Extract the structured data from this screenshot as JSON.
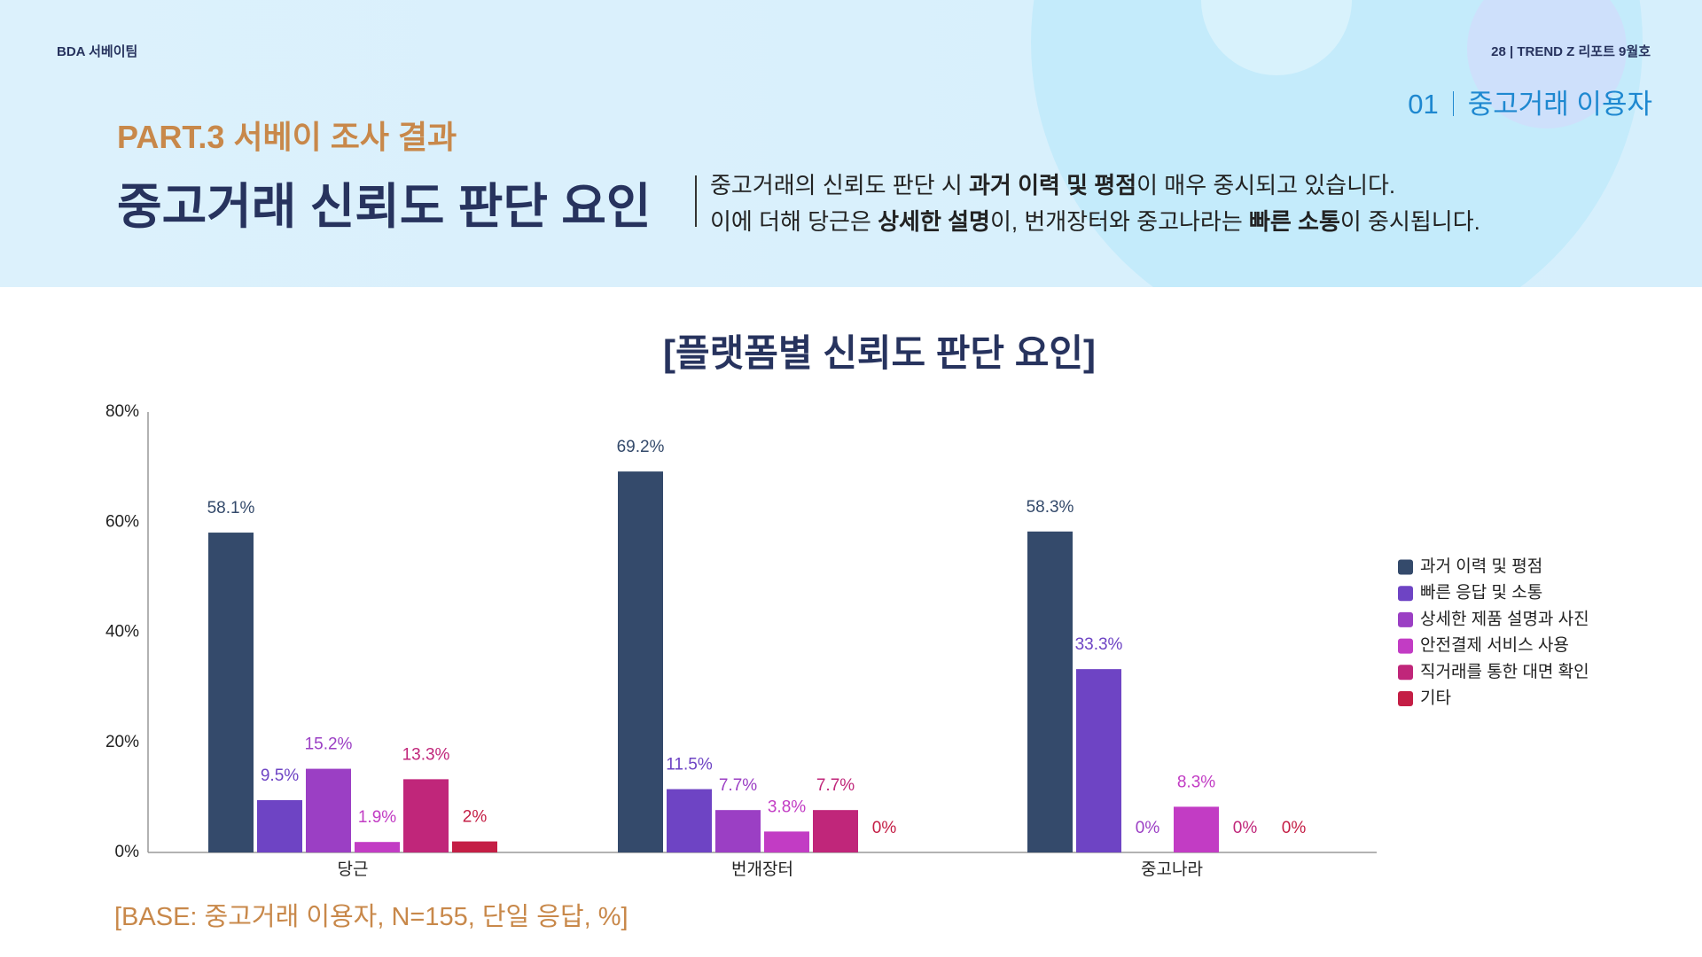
{
  "header": {
    "team": "BDA 서베이팀",
    "issue": "28 | TREND Z 리포트 9월호",
    "section_number": "01",
    "section_title": "중고거래 이용자",
    "part": "PART.3 서베이 조사 결과",
    "title": "중고거래 신뢰도 판단 요인"
  },
  "description": {
    "lines": [
      [
        {
          "text": "중고거래의 신뢰도 판단 시 ",
          "bold": false
        },
        {
          "text": "과거 이력 및 평점",
          "bold": true
        },
        {
          "text": "이 매우 중시되고 있습니다.",
          "bold": false
        }
      ],
      [
        {
          "text": "이에 더해 당근은 ",
          "bold": false
        },
        {
          "text": "상세한 설명",
          "bold": true
        },
        {
          "text": "이, 번개장터와 중고나라는 ",
          "bold": false
        },
        {
          "text": "빠른 소통",
          "bold": true
        },
        {
          "text": "이 중시됩니다.",
          "bold": false
        }
      ]
    ]
  },
  "chart_data": {
    "type": "bar",
    "title": "[플랫폼별 신뢰도 판단 요인]",
    "categories": [
      "당근",
      "번개장터",
      "중고나라"
    ],
    "series": [
      {
        "name": "과거 이력 및 평점",
        "color": "#344a6b",
        "values": [
          58.1,
          69.2,
          58.3
        ],
        "value_labels": [
          "58.1%",
          "69.2%",
          "58.3%"
        ]
      },
      {
        "name": "빠른 응답 및 소통",
        "color": "#6e44c4",
        "values": [
          9.5,
          11.5,
          33.3
        ],
        "value_labels": [
          "9.5%",
          "11.5%",
          "33.3%"
        ]
      },
      {
        "name": "상세한 제품 설명과 사진",
        "color": "#9b3fc4",
        "values": [
          15.2,
          7.7,
          0
        ],
        "value_labels": [
          "15.2%",
          "7.7%",
          "0%"
        ]
      },
      {
        "name": "안전결제 서비스 사용",
        "color": "#c23cc4",
        "values": [
          1.9,
          3.8,
          8.3
        ],
        "value_labels": [
          "1.9%",
          "3.8%",
          "8.3%"
        ]
      },
      {
        "name": "직거래를 통한 대면 확인",
        "color": "#c0267a",
        "values": [
          13.3,
          7.7,
          0
        ],
        "value_labels": [
          "13.3%",
          "7.7%",
          "0%"
        ]
      },
      {
        "name": "기타",
        "color": "#c41e45",
        "values": [
          2,
          0,
          0
        ],
        "value_labels": [
          "2%",
          "0%",
          "0%"
        ]
      }
    ],
    "ylim": [
      0,
      80
    ],
    "yticks": [
      {
        "value": 0,
        "label": "0%"
      },
      {
        "value": 20,
        "label": "20%"
      },
      {
        "value": 40,
        "label": "40%"
      },
      {
        "value": 60,
        "label": "60%"
      },
      {
        "value": 80,
        "label": "80%"
      }
    ],
    "grid": false,
    "legend": "right"
  },
  "note": "[BASE: 중고거래 이용자, N=155, 단일 응답, %]"
}
